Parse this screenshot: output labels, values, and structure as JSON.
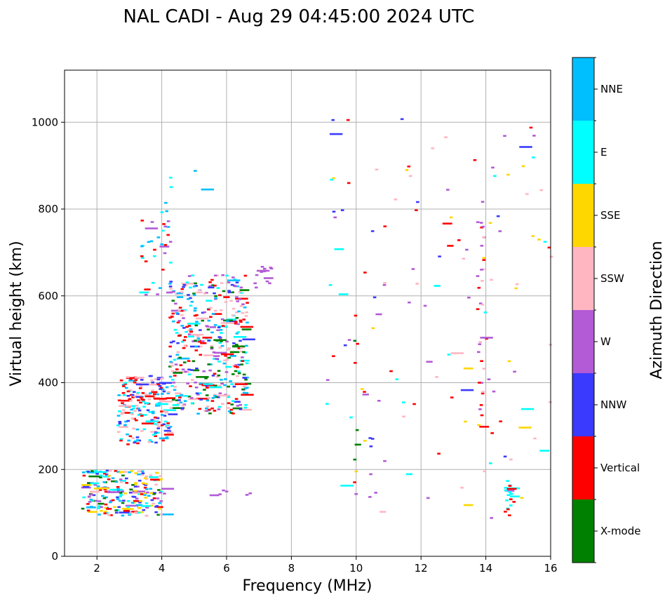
{
  "chart_data": {
    "type": "scatter",
    "title": "NAL CADI - Aug 29 04:45:00 2024 UTC",
    "xlabel": "Frequency (MHz)",
    "ylabel": "Virtual height (km)",
    "xlim": [
      1,
      16
    ],
    "ylim": [
      0,
      1120
    ],
    "xticks": [
      2,
      4,
      6,
      8,
      10,
      12,
      14,
      16
    ],
    "yticks": [
      0,
      200,
      400,
      600,
      800,
      1000
    ],
    "grid": true,
    "colorbar": {
      "label": "Azimuth Direction",
      "categories": [
        {
          "name": "X-mode",
          "color": "#008000"
        },
        {
          "name": "Vertical",
          "color": "#ff0000"
        },
        {
          "name": "NNW",
          "color": "#3a3aff"
        },
        {
          "name": "W",
          "color": "#b35ad6"
        },
        {
          "name": "SSW",
          "color": "#ffb6c1"
        },
        {
          "name": "SSE",
          "color": "#ffd700"
        },
        {
          "name": "E",
          "color": "#00ffff"
        },
        {
          "name": "NNE",
          "color": "#00bfff"
        }
      ]
    },
    "echo_regions": [
      {
        "name": "E-layer",
        "f": [
          1.5,
          4.0
        ],
        "h": [
          95,
          200
        ],
        "mix": [
          0,
          1,
          2,
          3,
          4,
          5,
          6,
          7
        ],
        "density": 2.5
      },
      {
        "name": "E-layer-tail",
        "f": [
          4.0,
          8.0
        ],
        "h": [
          140,
          155
        ],
        "mix": [
          3
        ],
        "density": 0.35
      },
      {
        "name": "F-trace-low",
        "f": [
          2.6,
          4.2
        ],
        "h": [
          260,
          420
        ],
        "mix": [
          1,
          6,
          7,
          2,
          4
        ],
        "density": 2.2
      },
      {
        "name": "F-trace-mid",
        "f": [
          4.2,
          6.6
        ],
        "h": [
          330,
          650
        ],
        "mix": [
          0,
          1,
          2,
          3,
          6,
          7,
          4
        ],
        "density": 1.6
      },
      {
        "name": "F-upper",
        "f": [
          3.3,
          4.3
        ],
        "h": [
          600,
          800
        ],
        "mix": [
          1,
          6,
          7,
          3
        ],
        "density": 0.5
      },
      {
        "name": "F-high",
        "f": [
          4.0,
          5.5
        ],
        "h": [
          800,
          910
        ],
        "mix": [
          1,
          6,
          7,
          0
        ],
        "density": 0.08
      },
      {
        "name": "Spread-7MHz",
        "f": [
          6.8,
          7.4
        ],
        "h": [
          620,
          670
        ],
        "mix": [
          3
        ],
        "density": 1.2
      },
      {
        "name": "Line-10MHz",
        "f": [
          9.9,
          10.0
        ],
        "h": [
          90,
          560
        ],
        "mix": [
          1,
          0,
          3
        ],
        "density": 0.5
      },
      {
        "name": "Scatter-9-16",
        "f": [
          9.0,
          16.0
        ],
        "h": [
          90,
          1010
        ],
        "mix": [
          3,
          1,
          2,
          5,
          6,
          4
        ],
        "density": 0.06
      },
      {
        "name": "Column-14MHz",
        "f": [
          13.7,
          13.9
        ],
        "h": [
          290,
          810
        ],
        "mix": [
          3,
          1,
          4
        ],
        "density": 0.7
      },
      {
        "name": "Column-14.7MHz",
        "f": [
          14.55,
          14.75
        ],
        "h": [
          90,
          180
        ],
        "mix": [
          1,
          6
        ],
        "density": 3.0
      }
    ]
  }
}
